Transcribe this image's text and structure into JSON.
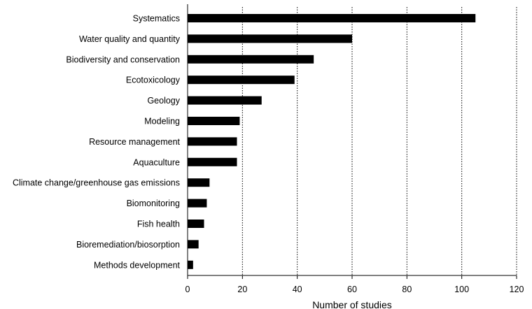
{
  "chart_data": {
    "type": "bar",
    "orientation": "horizontal",
    "title": "",
    "xlabel": "Number of studies",
    "ylabel": "",
    "xlim": [
      0,
      120
    ],
    "xticks": [
      0,
      20,
      40,
      60,
      80,
      100,
      120
    ],
    "grid": "vertical dotted lines at major ticks",
    "legend": "none",
    "bar_color": "#000000",
    "categories": [
      "Systematics",
      "Water quality and quantity",
      "Biodiversity and conservation",
      "Ecotoxicology",
      "Geology",
      "Modeling",
      "Resource management",
      "Aquaculture",
      "Climate change/greenhouse gas emissions",
      "Biomonitoring",
      "Fish health",
      "Bioremediation/biosorption",
      "Methods development"
    ],
    "values": [
      105,
      60,
      46,
      39,
      27,
      19,
      18,
      18,
      8,
      7,
      6,
      4,
      2
    ]
  }
}
